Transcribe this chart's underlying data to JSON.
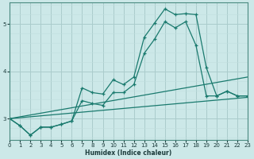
{
  "xlabel": "Humidex (Indice chaleur)",
  "bg_color": "#cce8e8",
  "line_color": "#1a7a6e",
  "grid_color_major": "#aacccc",
  "grid_color_minor": "#c0dede",
  "xmin": 0,
  "xmax": 23,
  "ymin": 2.55,
  "ymax": 5.45,
  "yticks": [
    3,
    4,
    5
  ],
  "line1_x": [
    0,
    1,
    2,
    3,
    4,
    5,
    6,
    7,
    8,
    9,
    10,
    11,
    12,
    13,
    14,
    15,
    16,
    17,
    18,
    19,
    20,
    21,
    22,
    23
  ],
  "line1_y": [
    3.0,
    2.85,
    2.65,
    2.82,
    2.82,
    2.88,
    2.95,
    3.65,
    3.55,
    3.52,
    3.82,
    3.72,
    3.88,
    4.72,
    5.02,
    5.32,
    5.2,
    5.22,
    5.2,
    4.08,
    3.48,
    3.58,
    3.48,
    3.48
  ],
  "line2_x": [
    0,
    1,
    2,
    3,
    4,
    5,
    6,
    7,
    8,
    9,
    10,
    11,
    12,
    13,
    14,
    15,
    16,
    17,
    18,
    19,
    20,
    21,
    22,
    23
  ],
  "line2_y": [
    3.0,
    2.85,
    2.65,
    2.82,
    2.82,
    2.88,
    2.95,
    3.38,
    3.32,
    3.28,
    3.55,
    3.55,
    3.72,
    4.38,
    4.68,
    5.05,
    4.92,
    5.05,
    4.55,
    3.48,
    3.48,
    3.58,
    3.48,
    3.48
  ],
  "line3_x": [
    0,
    23
  ],
  "line3_y": [
    3.0,
    3.45
  ],
  "line4_x": [
    0,
    23
  ],
  "line4_y": [
    3.0,
    3.88
  ],
  "marker": "+"
}
